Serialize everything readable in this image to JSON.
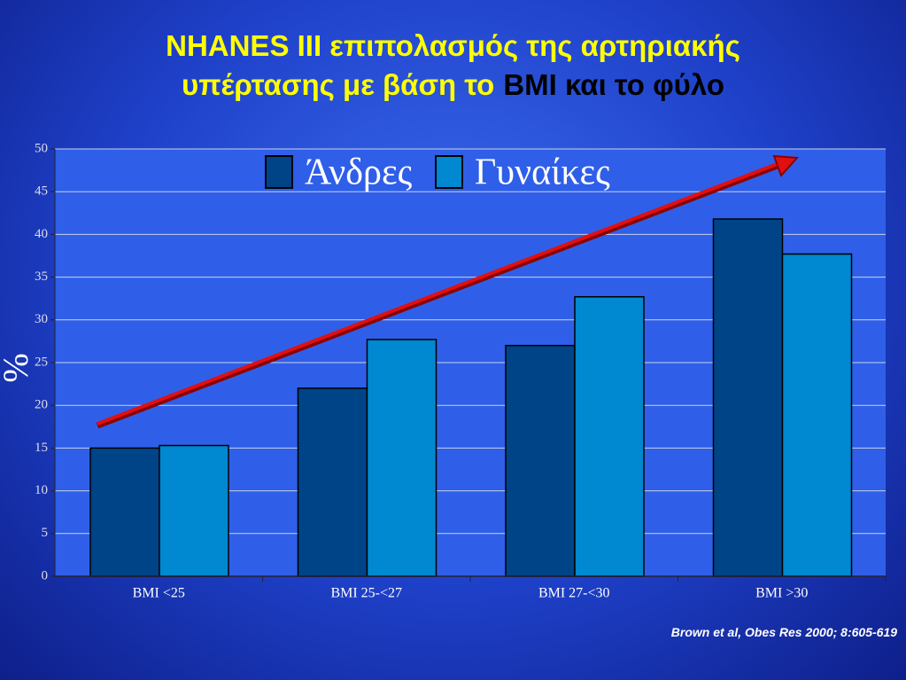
{
  "chart_data": {
    "type": "bar",
    "title": [
      "NHANES III επιπολασμός της αρτηριακής",
      "υπέρτασης με βάση το",
      "BMI και το φύλο"
    ],
    "title_colors": [
      "#ffff00",
      "#ffff00",
      "#000000"
    ],
    "y_label": "%",
    "categories": [
      "BMI <25",
      "BMI 25-<27",
      "BMI 27-<30",
      "BMI >30"
    ],
    "series": [
      {
        "name": "Άνδρες",
        "color": "#004488",
        "values": [
          15,
          22,
          27,
          41.8
        ]
      },
      {
        "name": "Γυναίκες",
        "color": "#0088d0",
        "values": [
          15.3,
          27.7,
          32.7,
          37.7
        ]
      }
    ],
    "ylim": [
      0,
      50
    ],
    "yticks": [
      0,
      5,
      10,
      15,
      20,
      25,
      30,
      35,
      40,
      45,
      50
    ],
    "grid": true,
    "source": "Brown  et al, Obes Res 2000; 8:605-619"
  }
}
